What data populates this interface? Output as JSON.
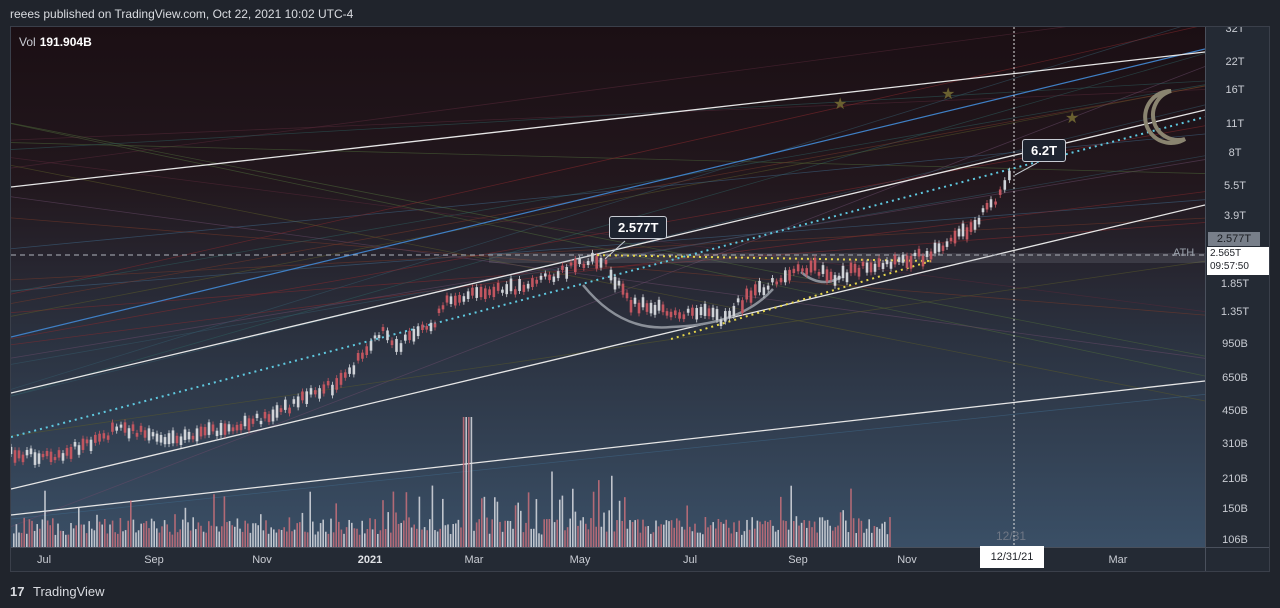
{
  "header": {
    "published": "reees published on TradingView.com, Oct 22, 2021 10:02 UTC-4"
  },
  "chart": {
    "volume_label": "Vol",
    "volume_value": "191.904B",
    "callout_left": "2.577T",
    "callout_right": "6.2T",
    "ath_label": "ATH",
    "date_marker": "12/31",
    "price_tag": "2.577T",
    "current_price": "2.565T",
    "countdown": "09:57:50",
    "x_date_highlight": "12/31/21"
  },
  "y_axis": [
    "32T",
    "22T",
    "16T",
    "11T",
    "8T",
    "5.5T",
    "3.9T",
    "1.85T",
    "1.35T",
    "950B",
    "650B",
    "450B",
    "310B",
    "210B",
    "150B",
    "106B"
  ],
  "x_axis": [
    {
      "label": "Jul"
    },
    {
      "label": "Sep"
    },
    {
      "label": "Nov"
    },
    {
      "label": "2021",
      "bold": true
    },
    {
      "label": "Mar"
    },
    {
      "label": "May"
    },
    {
      "label": "Jul"
    },
    {
      "label": "Sep"
    },
    {
      "label": "Nov"
    },
    {
      "label": "Mar"
    }
  ],
  "footer": {
    "logo": "17",
    "brand": "TradingView"
  },
  "colors": {
    "accent_cyan": "#5fc9e0",
    "accent_yellow": "#e6d64a",
    "candle_up": "#d0d3d8",
    "candle_down": "#c25660"
  }
}
